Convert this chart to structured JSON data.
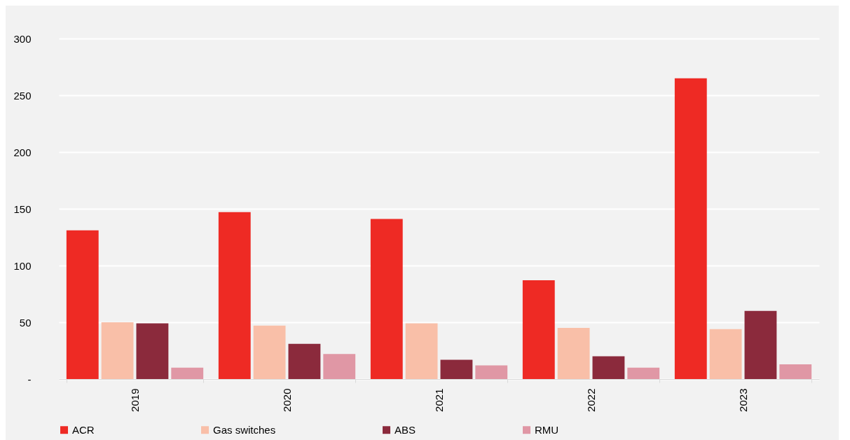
{
  "chart_data": {
    "type": "bar",
    "categories": [
      "2019",
      "2020",
      "2021",
      "2022",
      "2023"
    ],
    "series": [
      {
        "name": "ACR",
        "color": "#ee2a24",
        "values": [
          131,
          147,
          141,
          87,
          265
        ]
      },
      {
        "name": "Gas switches",
        "color": "#f9bfa8",
        "values": [
          50,
          47,
          49,
          45,
          44
        ]
      },
      {
        "name": "ABS",
        "color": "#8b2a3c",
        "values": [
          49,
          31,
          17,
          20,
          60
        ]
      },
      {
        "name": "RMU",
        "color": "#e097a5",
        "values": [
          10,
          22,
          12,
          10,
          13
        ]
      }
    ],
    "ylim": [
      0,
      300
    ],
    "yticks": [
      {
        "value": 0,
        "label": "-"
      },
      50,
      100,
      150,
      200,
      250,
      300
    ],
    "grid": "y",
    "legend": "bottom"
  }
}
